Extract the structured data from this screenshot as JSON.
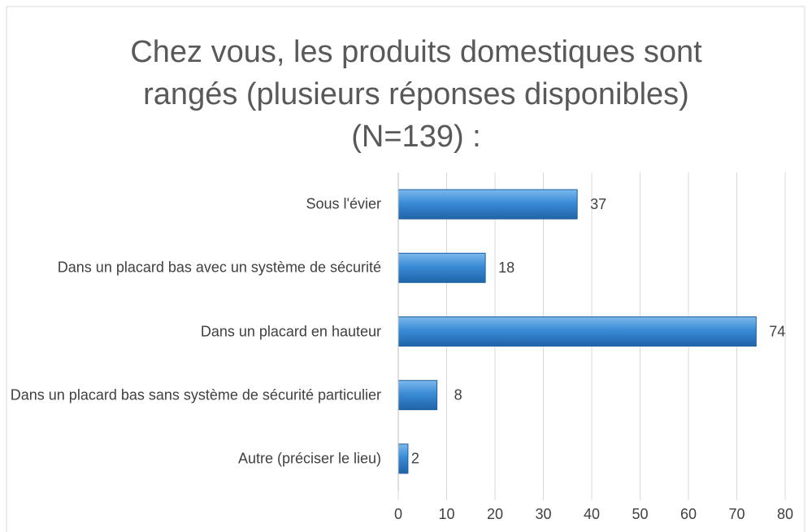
{
  "chart_data": {
    "type": "bar",
    "orientation": "horizontal",
    "title": "Chez vous, les produits domestiques sont rangés (plusieurs réponses disponibles) (N=139) :",
    "categories": [
      "Sous l'évier",
      "Dans un placard bas avec un système de sécurité",
      "Dans un placard en hauteur",
      "Dans un placard bas sans système de sécurité particulier",
      "Autre (préciser le lieu)"
    ],
    "values": [
      37,
      18,
      74,
      8,
      2
    ],
    "color": "#3a8bd6",
    "xlim": [
      0,
      80
    ],
    "xticks": [
      0,
      10,
      20,
      30,
      40,
      50,
      60,
      70,
      80
    ],
    "grid": true
  }
}
